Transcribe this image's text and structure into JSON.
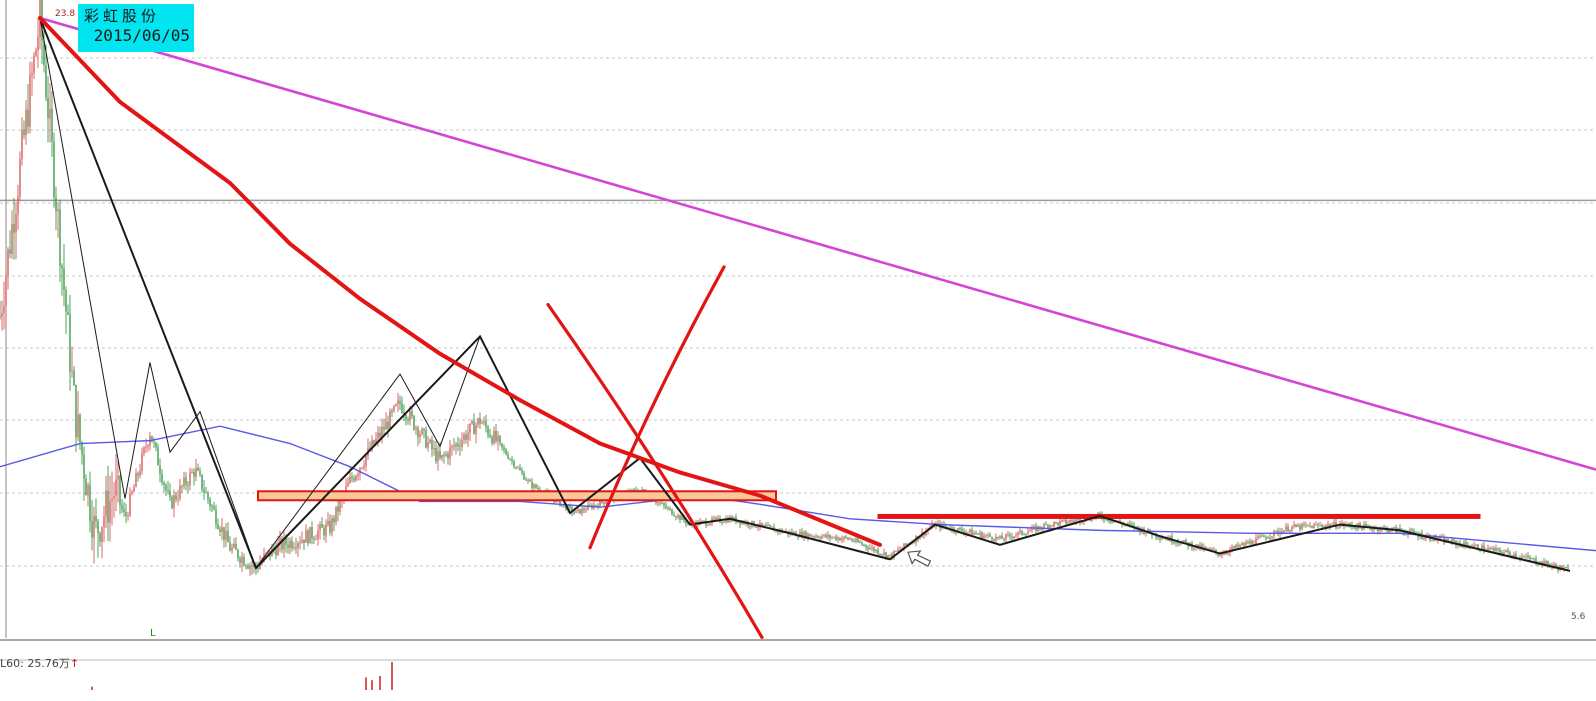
{
  "stock": {
    "name": "彩虹股份",
    "date": "2015/06/05",
    "high_value": "23.8"
  },
  "price_axis_low_label": "5.6",
  "l_marker": "L",
  "volume_indicator": {
    "label": "L60: 25.76万",
    "arrow": "↑"
  },
  "colors": {
    "background": "#ffffff",
    "candle_up": "#d65a5a",
    "candle_down": "#3c9a4a",
    "moving_average": "#5a5ae6",
    "zigzag": "#1a1a1a",
    "trendline_magenta": "#d545d5",
    "annotation_red": "#e31414",
    "support_band_fill": "#f8c89a",
    "support_band_border": "#e31414",
    "label_bg": "#00e5f0"
  },
  "chart_data": {
    "type": "candlestick",
    "title": "彩虹股份 2015/06/05",
    "y_range": [
      5,
      25
    ],
    "bar_count": 1000,
    "x_axis_label": "",
    "y_axis_label": "",
    "grid": true,
    "price_anchors": [
      [
        0,
        13.5
      ],
      [
        40,
        23.8
      ],
      [
        75,
        10.2
      ],
      [
        95,
        6.0
      ],
      [
        115,
        7.5
      ],
      [
        125,
        6.5
      ],
      [
        150,
        9.5
      ],
      [
        170,
        7.0
      ],
      [
        195,
        8.2
      ],
      [
        230,
        5.5
      ],
      [
        255,
        4.8
      ],
      [
        275,
        5.5
      ],
      [
        330,
        6.2
      ],
      [
        350,
        7.8
      ],
      [
        400,
        10.5
      ],
      [
        440,
        8.5
      ],
      [
        480,
        9.9
      ],
      [
        530,
        7.7
      ],
      [
        575,
        6.7
      ],
      [
        610,
        7.2
      ],
      [
        640,
        7.5
      ],
      [
        690,
        6.3
      ],
      [
        730,
        6.5
      ],
      [
        790,
        6.0
      ],
      [
        850,
        5.8
      ],
      [
        890,
        5.2
      ],
      [
        935,
        6.3
      ],
      [
        1000,
        5.8
      ],
      [
        1050,
        6.3
      ],
      [
        1100,
        6.6
      ],
      [
        1160,
        5.9
      ],
      [
        1220,
        5.3
      ],
      [
        1290,
        6.2
      ],
      [
        1340,
        6.3
      ],
      [
        1400,
        6.1
      ],
      [
        1450,
        5.7
      ],
      [
        1510,
        5.3
      ],
      [
        1570,
        4.7
      ]
    ],
    "moving_average": [
      [
        0,
        8.3
      ],
      [
        80,
        9.1
      ],
      [
        150,
        9.2
      ],
      [
        220,
        9.7
      ],
      [
        290,
        9.1
      ],
      [
        350,
        8.3
      ],
      [
        420,
        7.1
      ],
      [
        450,
        7.1
      ],
      [
        520,
        7.1
      ],
      [
        600,
        6.9
      ],
      [
        700,
        7.3
      ],
      [
        760,
        7.0
      ],
      [
        850,
        6.5
      ],
      [
        940,
        6.3
      ],
      [
        1100,
        6.1
      ],
      [
        1250,
        6.0
      ],
      [
        1400,
        6.0
      ],
      [
        1596,
        5.4
      ]
    ],
    "zigzag_pivots": [
      [
        40,
        23.8
      ],
      [
        256,
        4.8
      ],
      [
        480,
        12.8
      ],
      [
        570,
        6.7
      ],
      [
        640,
        8.6
      ],
      [
        690,
        6.3
      ],
      [
        730,
        6.5
      ],
      [
        790,
        6.0
      ],
      [
        890,
        5.1
      ],
      [
        935,
        6.3
      ],
      [
        1000,
        5.6
      ],
      [
        1100,
        6.6
      ],
      [
        1160,
        5.9
      ],
      [
        1220,
        5.3
      ],
      [
        1340,
        6.3
      ],
      [
        1400,
        6.1
      ],
      [
        1570,
        4.7
      ]
    ],
    "zigzag_thin": [
      [
        40,
        23.8
      ],
      [
        125,
        7.2
      ],
      [
        150,
        11.9
      ],
      [
        170,
        8.8
      ],
      [
        200,
        10.2
      ],
      [
        256,
        4.8
      ],
      [
        400,
        11.5
      ],
      [
        440,
        9.0
      ],
      [
        480,
        12.8
      ]
    ],
    "trendline_long": {
      "start": [
        40,
        23.8
      ],
      "end": [
        1596,
        8.2
      ]
    },
    "trendline_red_curve": [
      [
        40,
        23.8
      ],
      [
        120,
        20.9
      ],
      [
        230,
        18.1
      ],
      [
        290,
        16.0
      ],
      [
        360,
        14.1
      ],
      [
        440,
        12.2
      ],
      [
        520,
        10.6
      ],
      [
        600,
        9.1
      ],
      [
        680,
        8.1
      ],
      [
        760,
        7.3
      ],
      [
        880,
        5.6
      ]
    ],
    "support_zones": [
      {
        "x_range": [
          258,
          776
        ],
        "y_range": [
          7.14,
          7.45
        ],
        "style": "filled"
      },
      {
        "x_range": [
          878,
          1480
        ],
        "y_range": [
          6.52,
          6.65
        ],
        "style": "line"
      }
    ],
    "cross_annotation": [
      {
        "start": [
          548,
          13.9
        ],
        "end": [
          762,
          2.4
        ]
      },
      {
        "start": [
          590,
          5.5
        ],
        "end": [
          724,
          15.2
        ]
      }
    ],
    "horizontal_reference_y": 17.5,
    "cursor_arrow_at": [
      920,
      5.0
    ],
    "volume_bars": [
      [
        92,
        0.12
      ],
      [
        366,
        0.45
      ],
      [
        372,
        0.35
      ],
      [
        380,
        0.5
      ],
      [
        392,
        1.0
      ]
    ]
  }
}
